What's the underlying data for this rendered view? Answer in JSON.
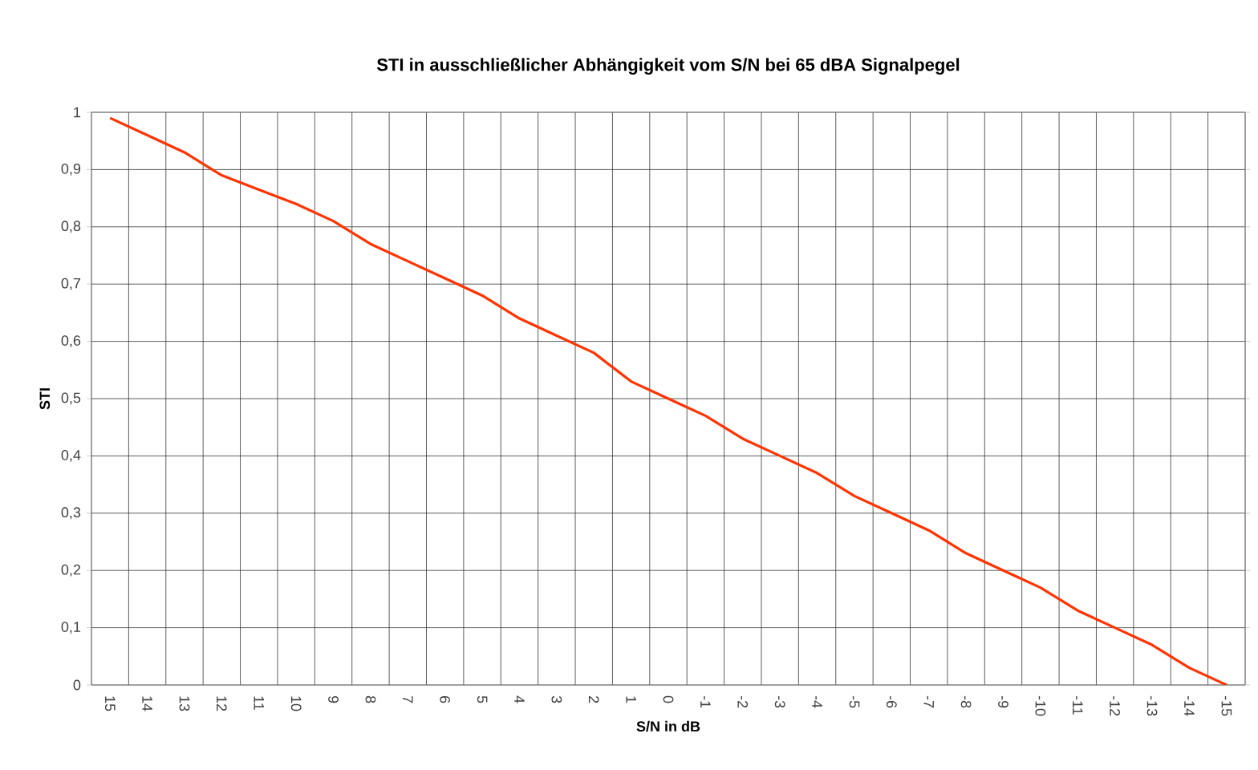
{
  "chart_data": {
    "type": "line",
    "title": "STI in ausschließlicher Abhängigkeit vom S/N bei 65 dBA Signalpegel",
    "xlabel": "S/N in dB",
    "ylabel": "STI",
    "categories": [
      "15",
      "14",
      "13",
      "12",
      "11",
      "10",
      "9",
      "8",
      "7",
      "6",
      "5",
      "4",
      "3",
      "2",
      "1",
      "0",
      "-1",
      "-2",
      "-3",
      "-4",
      "-5",
      "-6",
      "-7",
      "-8",
      "-9",
      "-10",
      "-11",
      "-12",
      "-13",
      "-14",
      "-15"
    ],
    "series": [
      {
        "color": "#ff3300",
        "values": [
          0.99,
          0.96,
          0.93,
          0.89,
          0.865,
          0.84,
          0.81,
          0.77,
          0.74,
          0.71,
          0.68,
          0.64,
          0.61,
          0.58,
          0.53,
          0.5,
          0.47,
          0.43,
          0.4,
          0.37,
          0.33,
          0.3,
          0.27,
          0.23,
          0.2,
          0.17,
          0.13,
          0.1,
          0.07,
          0.03,
          0.0
        ]
      }
    ],
    "ylim": [
      0,
      1
    ],
    "yticks": [
      0,
      {
        "value": 0.1,
        "label": "0,1"
      },
      {
        "value": 0.2,
        "label": "0,2"
      },
      {
        "value": 0.3,
        "label": "0,3"
      },
      {
        "value": 0.4,
        "label": "0,4"
      },
      {
        "value": 0.5,
        "label": "0,5"
      },
      {
        "value": 0.6,
        "label": "0,6"
      },
      {
        "value": 0.7,
        "label": "0,7"
      },
      {
        "value": 0.8,
        "label": "0,8"
      },
      {
        "value": 0.9,
        "label": "0,9"
      },
      1
    ],
    "grid": true,
    "marker": "none",
    "line_style": "solid"
  }
}
